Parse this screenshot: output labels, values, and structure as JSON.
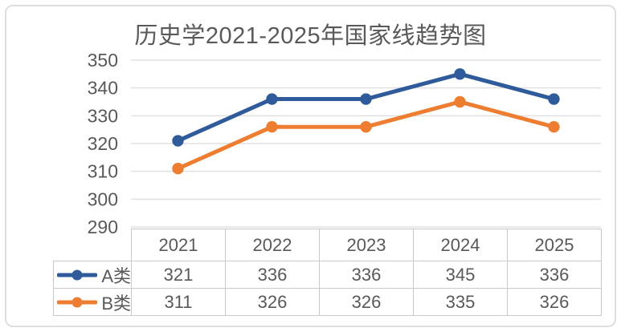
{
  "chart_data": {
    "type": "line",
    "title": "历史学2021-2025年国家线趋势图",
    "categories": [
      "2021",
      "2022",
      "2023",
      "2024",
      "2025"
    ],
    "series": [
      {
        "name": "A类",
        "color": "#2F5B9A",
        "values": [
          321,
          336,
          336,
          345,
          336
        ]
      },
      {
        "name": "B类",
        "color": "#ED7D31",
        "values": [
          311,
          326,
          326,
          335,
          326
        ]
      }
    ],
    "xlabel": "",
    "ylabel": "",
    "ylim": [
      290,
      350
    ],
    "yticks": [
      350,
      340,
      330,
      320,
      310,
      300,
      290
    ],
    "grid": "horizontal-only",
    "legend_position": "data-table-left-keys",
    "marker": "circle"
  },
  "colors": {
    "series_a": "#2F5B9A",
    "series_b": "#ED7D31",
    "text": "#595959",
    "gridline": "#E0E0E0",
    "table_border": "#C9C9C9",
    "card_border": "#DEDEDE",
    "background": "#FFFFFF"
  }
}
